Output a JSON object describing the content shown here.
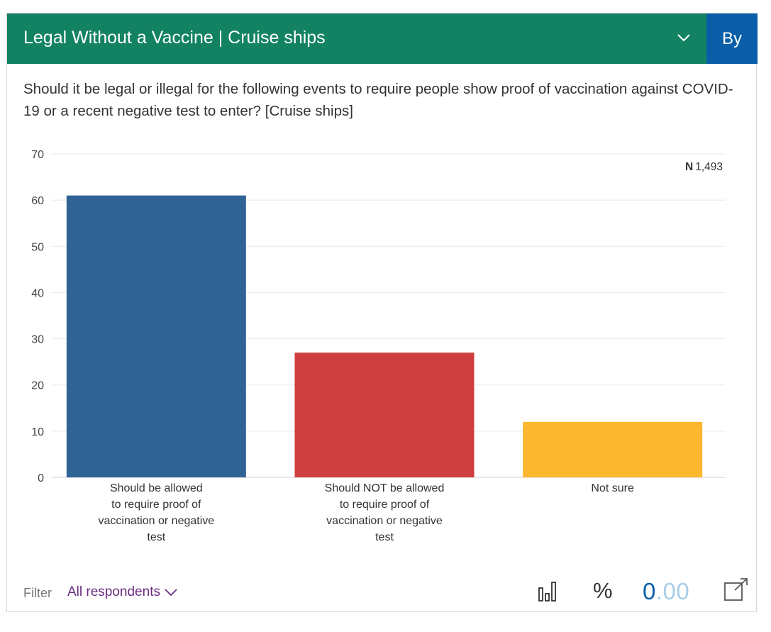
{
  "header": {
    "title": "Legal Without a Vaccine | Cruise ships",
    "by_label": "By"
  },
  "question": "Should it be legal or illegal for the following events to require people show proof of vaccination against COVID-19 or a recent negative test to enter? [Cruise ships]",
  "sample": {
    "label": "N",
    "value": "1,493"
  },
  "footer": {
    "filter_label": "Filter",
    "filter_value": "All respondents",
    "percent_symbol": "%",
    "decimals_lead": "0",
    "decimals_tail": ".00",
    "icons": [
      "bar-chart-icon",
      "chevron-down-icon",
      "external-link-icon"
    ]
  },
  "chart_data": {
    "type": "bar",
    "categories": [
      [
        "Should be allowed",
        "to require proof of",
        "vaccination or negative",
        "test"
      ],
      [
        "Should NOT be allowed",
        "to require proof of",
        "vaccination or negative",
        "test"
      ],
      [
        "Not sure"
      ]
    ],
    "values": [
      61,
      27,
      12
    ],
    "colors": [
      "#306395",
      "#cf3e3e",
      "#fbb72d"
    ],
    "ylim": [
      0,
      70
    ],
    "yticks": [
      0,
      10,
      20,
      30,
      40,
      50,
      60,
      70
    ],
    "grid": true,
    "legend": "none"
  }
}
